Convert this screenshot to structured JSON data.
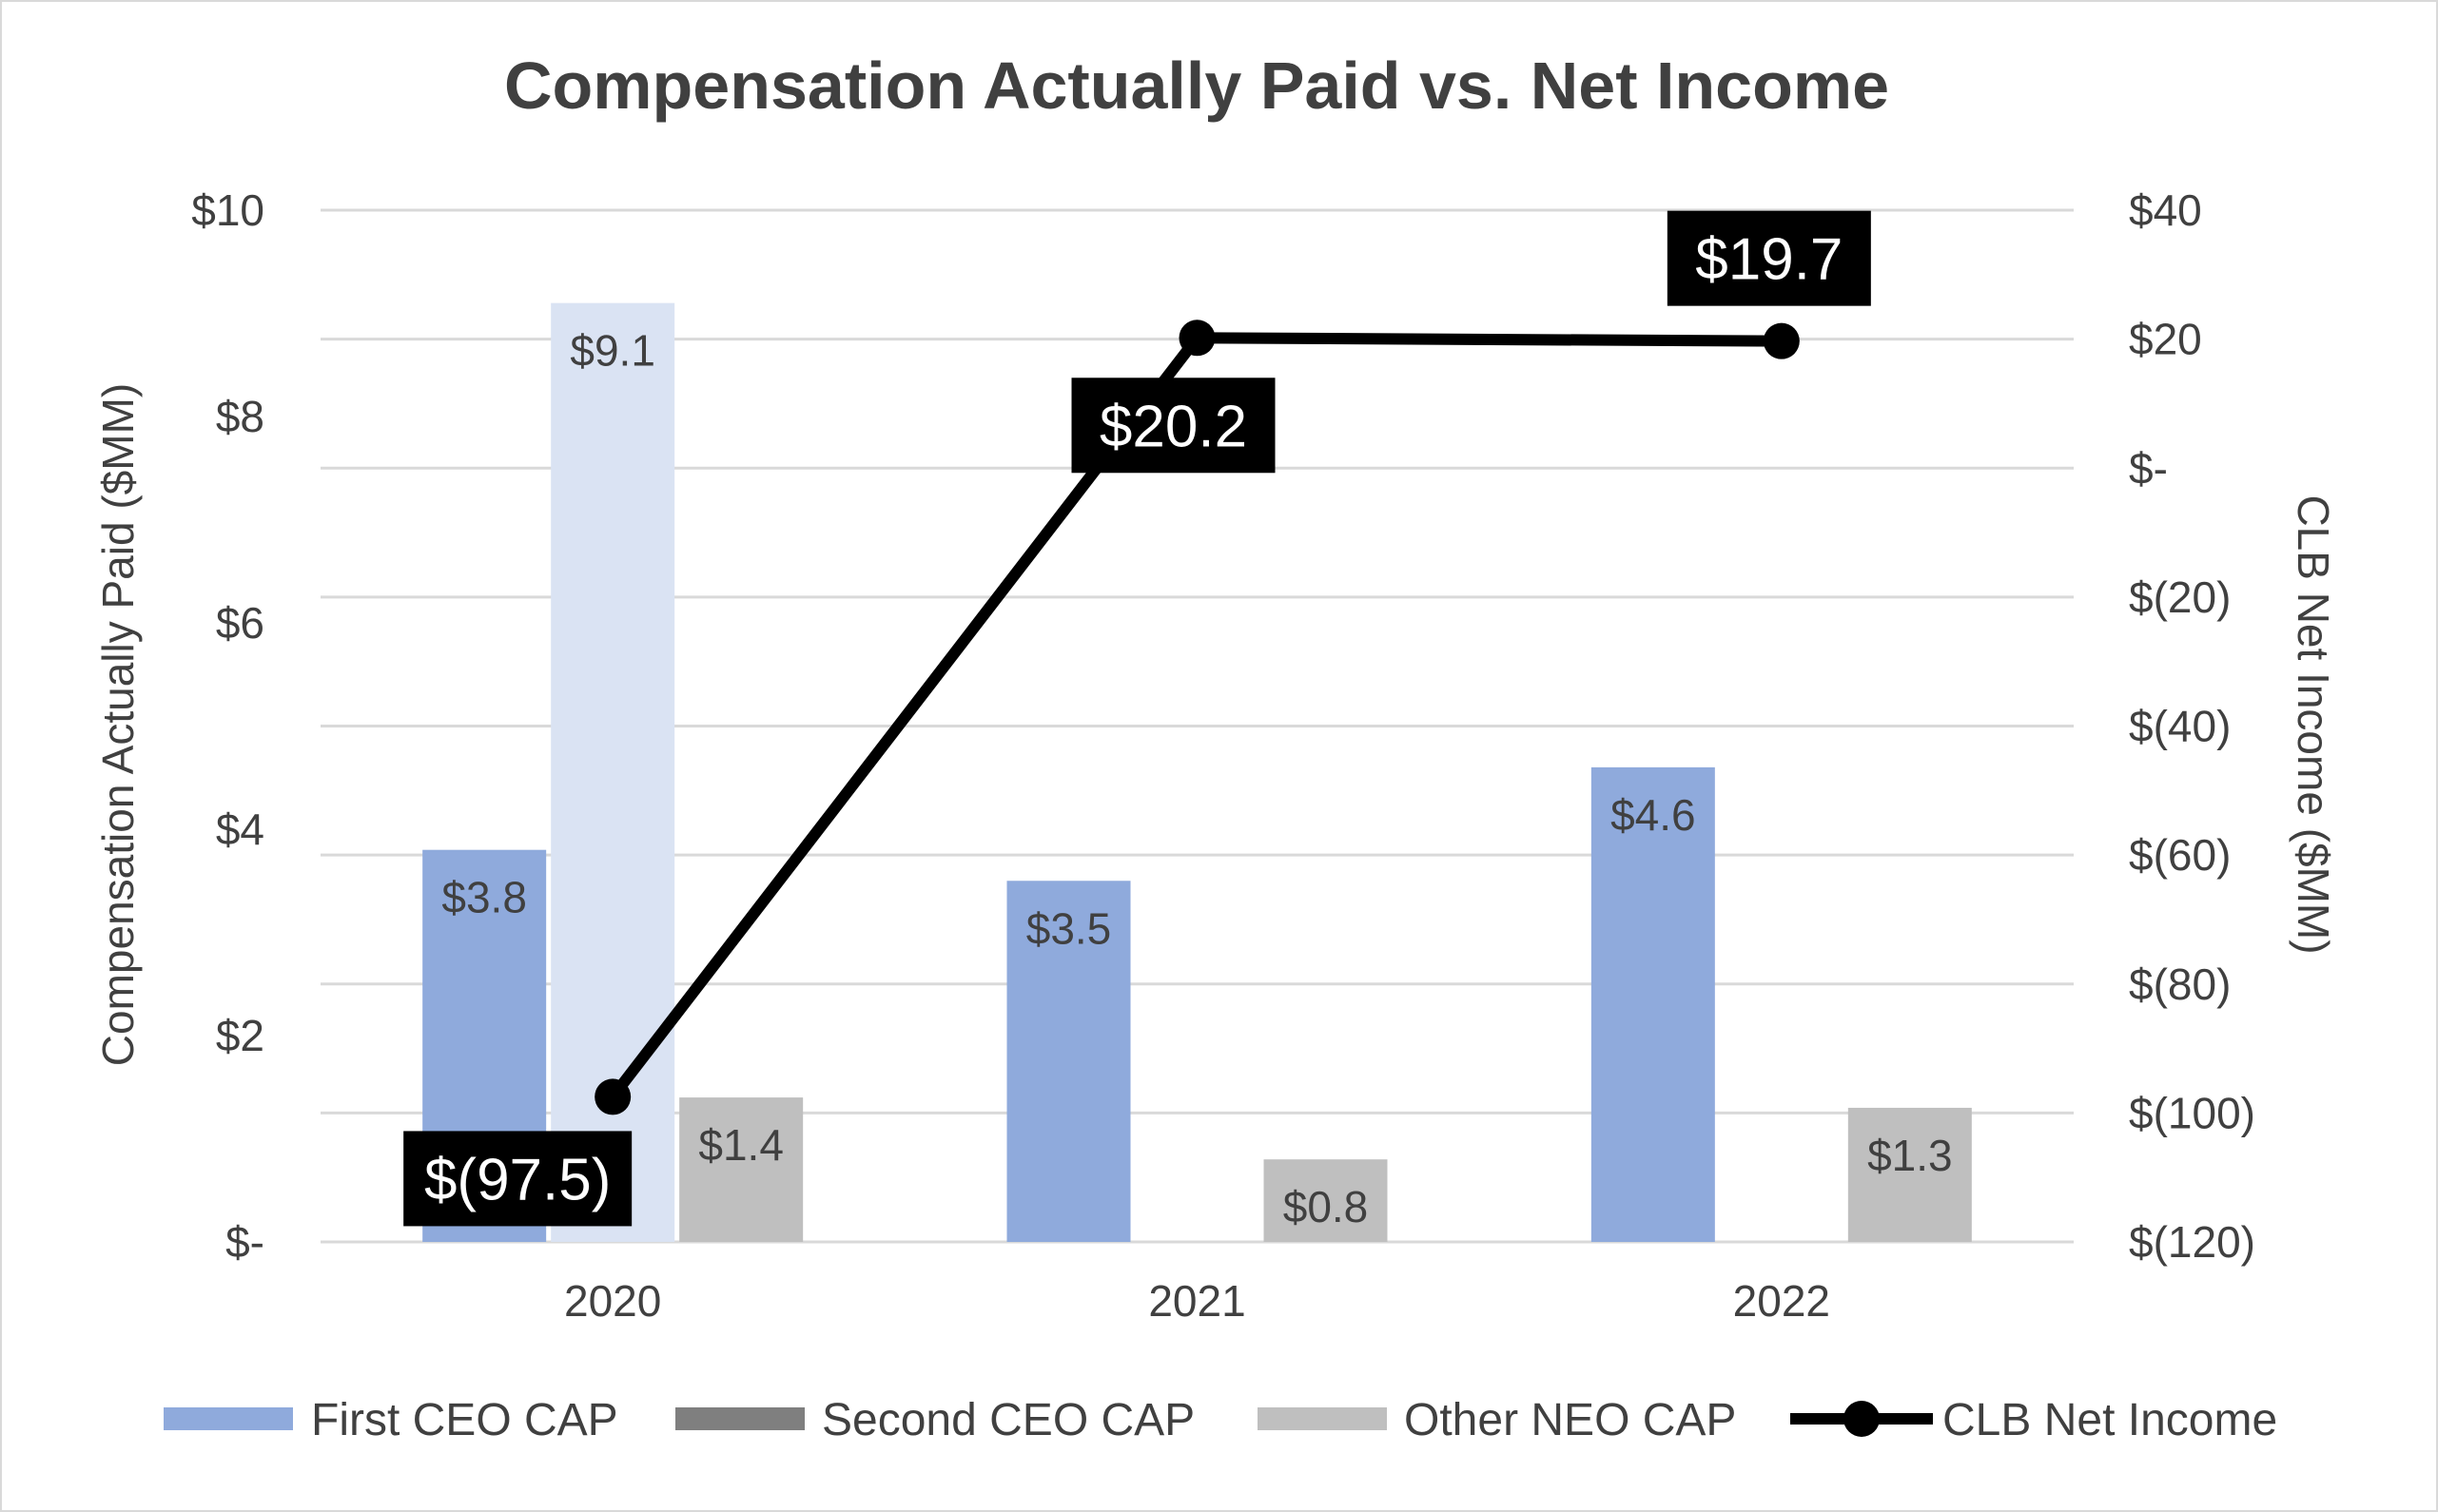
{
  "chart_data": {
    "type": "bar",
    "title": "Compensation Actually Paid vs. Net Income",
    "categories": [
      "2020",
      "2021",
      "2022"
    ],
    "ylabel": "Compensation Actually Paid ($MM)",
    "y2label": "CLB Net Income ($MM)",
    "ylim": [
      0,
      10
    ],
    "y2lim": [
      -120,
      40
    ],
    "yticks": [
      0,
      2,
      4,
      6,
      8,
      10
    ],
    "ytick_labels": [
      "$-",
      "$2",
      "$4",
      "$6",
      "$8",
      "$10"
    ],
    "y2ticks": [
      -120,
      -100,
      -80,
      -60,
      -40,
      -20,
      0,
      20,
      40
    ],
    "y2tick_labels": [
      "$(120)",
      "$(100)",
      "$(80)",
      "$(60)",
      "$(40)",
      "$(20)",
      "$-",
      "$20",
      "$40"
    ],
    "grid": true,
    "legend_position": "bottom",
    "series": [
      {
        "name": "First CEO CAP",
        "type": "bar",
        "axis": "left",
        "color": "#8faadc",
        "values": [
          3.8,
          3.5,
          4.6
        ],
        "labels": [
          "$3.8",
          "$3.5",
          "$4.6"
        ]
      },
      {
        "name": "Second CEO CAP",
        "type": "bar",
        "axis": "left",
        "color": "#dae3f3",
        "legend_color": "#7f7f7f",
        "values": [
          9.1,
          null,
          null
        ],
        "labels": [
          "$9.1",
          "",
          ""
        ]
      },
      {
        "name": "Other NEO CAP",
        "type": "bar",
        "axis": "left",
        "color": "#bfbfbf",
        "values": [
          1.4,
          0.8,
          1.3
        ],
        "labels": [
          "$1.4",
          "$0.8",
          "$1.3"
        ]
      },
      {
        "name": "CLB Net Income",
        "type": "line",
        "axis": "right",
        "color": "#000000",
        "values": [
          -97.5,
          20.2,
          19.7
        ],
        "labels": [
          "$(97.5)",
          "$20.2",
          "$19.7"
        ]
      }
    ]
  }
}
